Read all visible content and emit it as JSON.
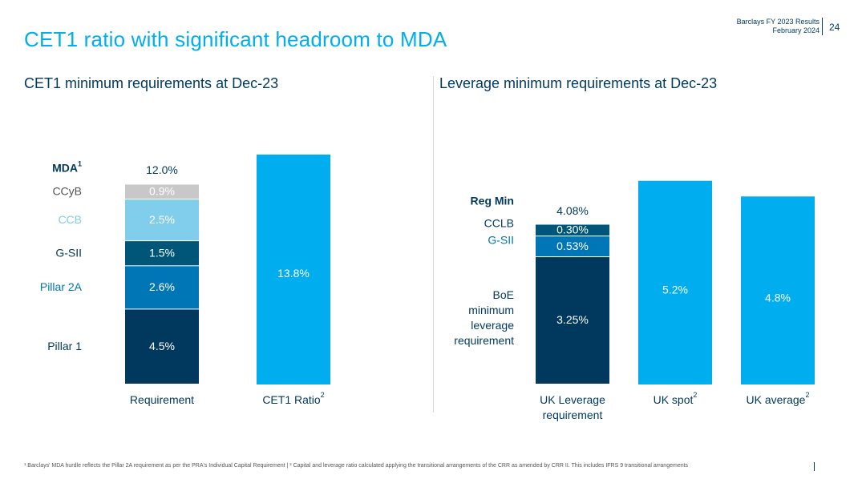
{
  "header": {
    "company_line": "Barclays FY 2023 Results",
    "date_line": "February 2024",
    "page_number": "24"
  },
  "page_title": "CET1 ratio with significant headroom to MDA",
  "footnote": "¹ Barclays' MDA hurdle reflects the Pillar 2A requirement as per the PRA's Individual Capital Requirement | ² Capital and leverage ratio calculated applying the transitional arrangements of the CRR as amended by CRR II. This includes IFRS 9 transitional arrangements",
  "chart_data": [
    {
      "type": "bar",
      "stacked": true,
      "title": "CET1 minimum requirements at Dec-23",
      "categories": [
        "Requirement",
        "CET1 Ratio²"
      ],
      "ylim": [
        0,
        14.6
      ],
      "total_label": "12.0%",
      "total_row_label": "MDA¹",
      "stack_category": "Requirement",
      "series": [
        {
          "name": "Pillar 1",
          "value": 4.5,
          "label": "4.5%",
          "color": "#00395d",
          "text_color": "#ffffff",
          "label_color": "#00395d"
        },
        {
          "name": "Pillar 2A",
          "value": 2.6,
          "label": "2.6%",
          "color": "#0076b6",
          "text_color": "#ffffff",
          "label_color": "#0076b6"
        },
        {
          "name": "G-SII",
          "value": 1.5,
          "label": "1.5%",
          "color": "#005678",
          "text_color": "#ffffff",
          "label_color": "#00395d"
        },
        {
          "name": "CCB",
          "value": 2.5,
          "label": "2.5%",
          "color": "#81cdec",
          "text_color": "#ffffff",
          "label_color": "#81cdec"
        },
        {
          "name": "CCyB",
          "value": 0.9,
          "label": "0.9%",
          "color": "#c8c8c8",
          "text_color": "#ffffff",
          "label_color": "#555555"
        }
      ],
      "single_bars": [
        {
          "category": "CET1 Ratio²",
          "value": 13.8,
          "label": "13.8%",
          "color": "#00aeef"
        }
      ]
    },
    {
      "type": "bar",
      "stacked": true,
      "title": "Leverage minimum requirements at Dec-23",
      "categories": [
        "UK Leverage requirement",
        "UK spot²",
        "UK average²"
      ],
      "ylim": [
        0,
        5.9
      ],
      "total_label": "4.08%",
      "total_row_label": "Reg Min",
      "stack_category": "UK Leverage requirement",
      "series": [
        {
          "name": "BoE minimum leverage requirement",
          "value": 3.25,
          "label": "3.25%",
          "color": "#00395d",
          "text_color": "#ffffff",
          "label_color": "#00395d"
        },
        {
          "name": "G-SII",
          "value": 0.53,
          "label": "0.53%",
          "color": "#0076b6",
          "text_color": "#ffffff",
          "label_color": "#0076b6"
        },
        {
          "name": "CCLB",
          "value": 0.3,
          "label": "0.30%",
          "color": "#005678",
          "text_color": "#ffffff",
          "label_color": "#00395d"
        }
      ],
      "single_bars": [
        {
          "category": "UK spot²",
          "value": 5.2,
          "label": "5.2%",
          "color": "#00aeef"
        },
        {
          "category": "UK average²",
          "value": 4.8,
          "label": "4.8%",
          "color": "#00aeef"
        }
      ]
    }
  ]
}
